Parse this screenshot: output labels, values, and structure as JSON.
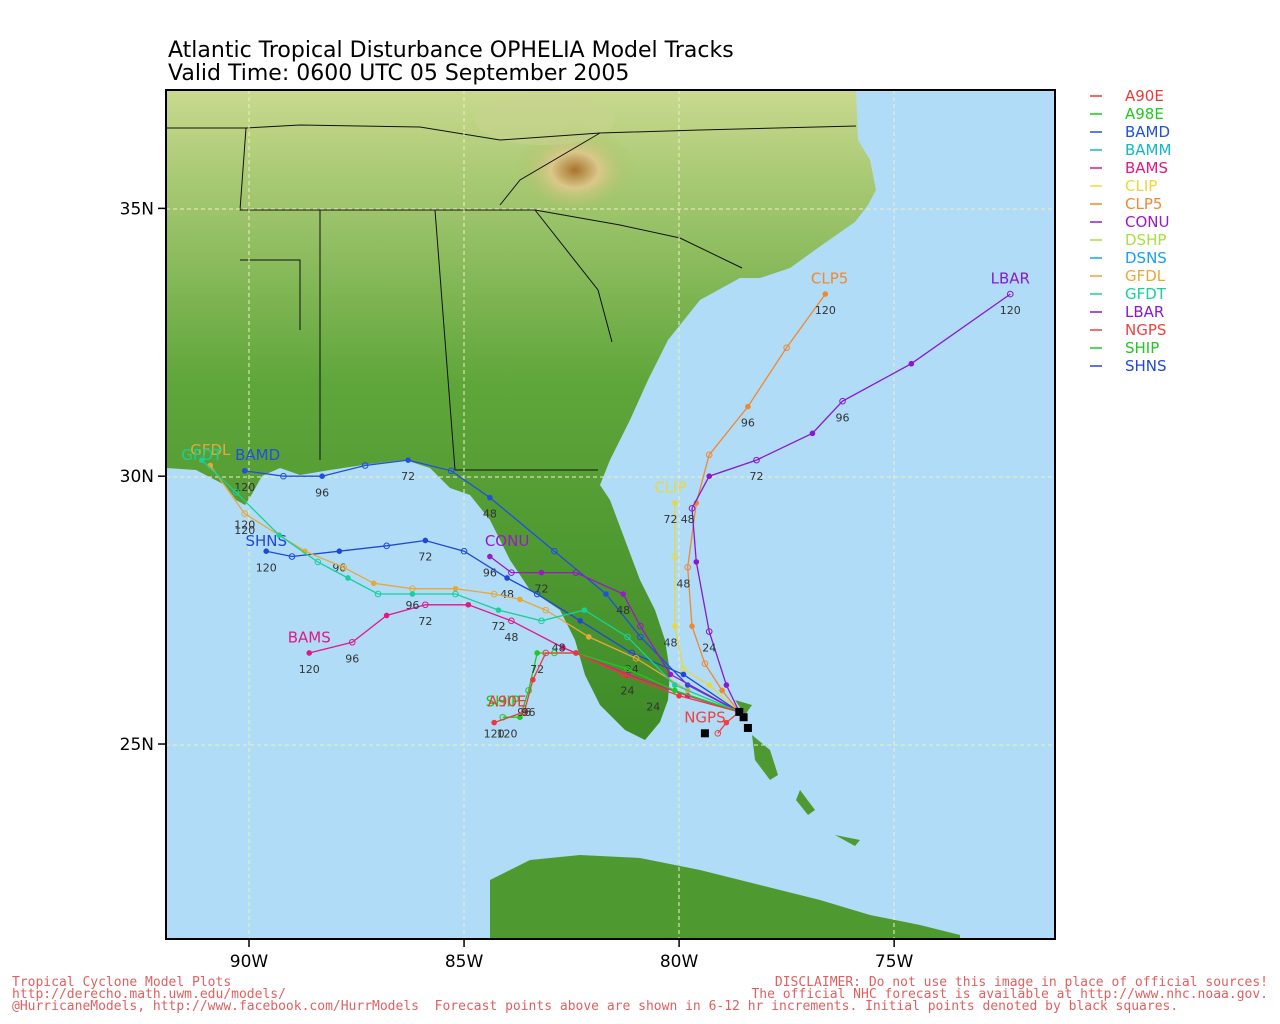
{
  "title": {
    "line1": "Atlantic Tropical Disturbance OPHELIA Model Tracks",
    "line2": "Valid Time: 0600 UTC 05 September 2005"
  },
  "axes": {
    "lat_labels": [
      {
        "text": "35N",
        "lat": 35
      },
      {
        "text": "30N",
        "lat": 30
      },
      {
        "text": "25N",
        "lat": 25
      }
    ],
    "lon_labels": [
      {
        "text": "90W",
        "lon": -90
      },
      {
        "text": "85W",
        "lon": -85
      },
      {
        "text": "80W",
        "lon": -80
      },
      {
        "text": "75W",
        "lon": -75
      }
    ]
  },
  "legend": [
    {
      "name": "A90E",
      "color": "#e83a3a"
    },
    {
      "name": "A98E",
      "color": "#1ec81e"
    },
    {
      "name": "BAMD",
      "color": "#2050e0"
    },
    {
      "name": "BAMM",
      "color": "#10b8c8"
    },
    {
      "name": "BAMS",
      "color": "#e01888"
    },
    {
      "name": "CLIP",
      "color": "#e8d840"
    },
    {
      "name": "CLP5",
      "color": "#f08830"
    },
    {
      "name": "CONU",
      "color": "#9a1ac8"
    },
    {
      "name": "DSHP",
      "color": "#a8e040"
    },
    {
      "name": "DSNS",
      "color": "#18a0e8"
    },
    {
      "name": "GFDL",
      "color": "#e8a838"
    },
    {
      "name": "GFDT",
      "color": "#18d098"
    },
    {
      "name": "LBAR",
      "color": "#8a18d0"
    },
    {
      "name": "NGPS",
      "color": "#f04040"
    },
    {
      "name": "SHIP",
      "color": "#20c820"
    },
    {
      "name": "SHNS",
      "color": "#2048d8"
    }
  ],
  "tracks": [
    {
      "name": "CLP5",
      "color": "#f08830",
      "label_pos": [
        -76.5,
        33.6
      ],
      "points": [
        [
          -78.6,
          25.6
        ],
        [
          -79.0,
          26.0
        ],
        [
          -79.4,
          26.5
        ],
        [
          -79.7,
          27.2
        ],
        [
          -79.8,
          28.3
        ],
        [
          -79.6,
          29.5
        ],
        [
          -79.3,
          30.4
        ],
        [
          -78.4,
          31.3
        ],
        [
          -77.5,
          32.4
        ],
        [
          -76.6,
          33.4
        ]
      ],
      "hour_labels": [
        {
          "text": "48",
          "pt": [
            -79.9,
            28.0
          ]
        },
        {
          "text": "96",
          "pt": [
            -78.4,
            31.0
          ]
        },
        {
          "text": "120",
          "pt": [
            -76.6,
            33.1
          ]
        }
      ]
    },
    {
      "name": "LBAR",
      "color": "#8a18d0",
      "label_pos": [
        -72.3,
        33.6
      ],
      "points": [
        [
          -78.6,
          25.6
        ],
        [
          -78.9,
          26.1
        ],
        [
          -79.3,
          27.1
        ],
        [
          -79.6,
          28.4
        ],
        [
          -79.7,
          29.4
        ],
        [
          -79.3,
          30.0
        ],
        [
          -78.2,
          30.3
        ],
        [
          -76.9,
          30.8
        ],
        [
          -76.2,
          31.4
        ],
        [
          -74.6,
          32.1
        ],
        [
          -72.3,
          33.4
        ]
      ],
      "hour_labels": [
        {
          "text": "24",
          "pt": [
            -79.3,
            26.8
          ]
        },
        {
          "text": "48",
          "pt": [
            -79.8,
            29.2
          ]
        },
        {
          "text": "72",
          "pt": [
            -78.2,
            30.0
          ]
        },
        {
          "text": "96",
          "pt": [
            -76.2,
            31.1
          ]
        },
        {
          "text": "120",
          "pt": [
            -72.3,
            33.1
          ]
        }
      ]
    },
    {
      "name": "CLIP",
      "color": "#e8d840",
      "label_pos": [
        -80.2,
        29.7
      ],
      "points": [
        [
          -78.6,
          25.6
        ],
        [
          -79.3,
          26.1
        ],
        [
          -79.9,
          26.4
        ],
        [
          -80.1,
          27.2
        ],
        [
          -80.1,
          28.5
        ],
        [
          -80.1,
          29.5
        ]
      ],
      "hour_labels": [
        {
          "text": "48",
          "pt": [
            -80.2,
            26.9
          ]
        },
        {
          "text": "72",
          "pt": [
            -80.2,
            29.2
          ]
        }
      ]
    },
    {
      "name": "BAMD",
      "color": "#2050e0",
      "label_pos": [
        -89.8,
        30.3
      ],
      "points": [
        [
          -78.6,
          25.6
        ],
        [
          -79.8,
          26.1
        ],
        [
          -80.9,
          27.0
        ],
        [
          -81.7,
          27.8
        ],
        [
          -82.9,
          28.6
        ],
        [
          -84.4,
          29.6
        ],
        [
          -85.3,
          30.1
        ],
        [
          -86.3,
          30.3
        ],
        [
          -87.3,
          30.2
        ],
        [
          -88.3,
          30.0
        ],
        [
          -89.2,
          30.0
        ],
        [
          -90.1,
          30.1
        ]
      ],
      "hour_labels": [
        {
          "text": "48",
          "pt": [
            -84.4,
            29.3
          ]
        },
        {
          "text": "72",
          "pt": [
            -86.3,
            30.0
          ]
        },
        {
          "text": "96",
          "pt": [
            -88.3,
            29.7
          ]
        },
        {
          "text": "120",
          "pt": [
            -90.1,
            29.8
          ]
        }
      ]
    },
    {
      "name": "SHNS",
      "color": "#2048d8",
      "label_pos": [
        -89.6,
        28.7
      ],
      "points": [
        [
          -78.6,
          25.6
        ],
        [
          -79.9,
          26.3
        ],
        [
          -81.1,
          26.7
        ],
        [
          -82.3,
          27.3
        ],
        [
          -83.3,
          27.8
        ],
        [
          -84.0,
          28.1
        ],
        [
          -85.0,
          28.6
        ],
        [
          -85.9,
          28.8
        ],
        [
          -86.8,
          28.7
        ],
        [
          -87.9,
          28.6
        ],
        [
          -89.0,
          28.5
        ],
        [
          -89.6,
          28.6
        ]
      ],
      "hour_labels": [
        {
          "text": "24",
          "pt": [
            -81.1,
            26.4
          ]
        },
        {
          "text": "48",
          "pt": [
            -84.0,
            27.8
          ]
        },
        {
          "text": "72",
          "pt": [
            -85.9,
            28.5
          ]
        },
        {
          "text": "96",
          "pt": [
            -87.9,
            28.3
          ]
        },
        {
          "text": "120",
          "pt": [
            -89.6,
            28.3
          ]
        }
      ]
    },
    {
      "name": "BAMS",
      "color": "#e01888",
      "label_pos": [
        -88.6,
        26.9
      ],
      "points": [
        [
          -78.6,
          25.6
        ],
        [
          -79.8,
          25.9
        ],
        [
          -81.2,
          26.3
        ],
        [
          -82.7,
          26.8
        ],
        [
          -83.9,
          27.3
        ],
        [
          -84.9,
          27.6
        ],
        [
          -85.9,
          27.6
        ],
        [
          -86.8,
          27.4
        ],
        [
          -87.6,
          26.9
        ],
        [
          -88.6,
          26.7
        ]
      ],
      "hour_labels": [
        {
          "text": "24",
          "pt": [
            -81.2,
            26.0
          ]
        },
        {
          "text": "48",
          "pt": [
            -83.9,
            27.0
          ]
        },
        {
          "text": "72",
          "pt": [
            -85.9,
            27.3
          ]
        },
        {
          "text": "96",
          "pt": [
            -87.6,
            26.6
          ]
        },
        {
          "text": "120",
          "pt": [
            -88.6,
            26.4
          ]
        }
      ]
    },
    {
      "name": "CONU",
      "color": "#9a1ac8",
      "label_pos": [
        -84.0,
        28.7
      ],
      "points": [
        [
          -78.6,
          25.6
        ],
        [
          -80.2,
          26.3
        ],
        [
          -80.9,
          27.2
        ],
        [
          -81.3,
          27.8
        ],
        [
          -82.4,
          28.2
        ],
        [
          -83.2,
          28.2
        ],
        [
          -83.9,
          28.2
        ],
        [
          -84.4,
          28.5
        ]
      ],
      "hour_labels": [
        {
          "text": "48",
          "pt": [
            -81.3,
            27.5
          ]
        },
        {
          "text": "72",
          "pt": [
            -83.2,
            27.9
          ]
        },
        {
          "text": "96",
          "pt": [
            -84.4,
            28.2
          ]
        }
      ]
    },
    {
      "name": "GFDL",
      "color": "#e8a838",
      "label_pos": [
        -90.9,
        30.4
      ],
      "points": [
        [
          -78.6,
          25.6
        ],
        [
          -79.8,
          26.0
        ],
        [
          -81.0,
          26.6
        ],
        [
          -82.1,
          27.0
        ],
        [
          -83.1,
          27.5
        ],
        [
          -83.7,
          27.7
        ],
        [
          -84.3,
          27.8
        ],
        [
          -85.2,
          27.9
        ],
        [
          -86.2,
          27.9
        ],
        [
          -87.1,
          28.0
        ],
        [
          -87.8,
          28.3
        ],
        [
          -88.7,
          28.6
        ],
        [
          -90.1,
          29.3
        ],
        [
          -90.9,
          30.2
        ]
      ],
      "hour_labels": [
        {
          "text": "96",
          "pt": [
            -86.2,
            27.6
          ]
        },
        {
          "text": "120",
          "pt": [
            -90.1,
            29.0
          ]
        }
      ]
    },
    {
      "name": "GFDT",
      "color": "#18d098",
      "label_pos": [
        -91.1,
        30.3
      ],
      "points": [
        [
          -78.6,
          25.6
        ],
        [
          -80.1,
          26.1
        ],
        [
          -81.2,
          27.0
        ],
        [
          -82.2,
          27.5
        ],
        [
          -83.2,
          27.3
        ],
        [
          -84.2,
          27.5
        ],
        [
          -85.2,
          27.8
        ],
        [
          -86.2,
          27.8
        ],
        [
          -87.0,
          27.8
        ],
        [
          -87.7,
          28.1
        ],
        [
          -88.4,
          28.4
        ],
        [
          -89.3,
          28.9
        ],
        [
          -90.3,
          29.7
        ],
        [
          -91.1,
          30.3
        ]
      ],
      "hour_labels": [
        {
          "text": "72",
          "pt": [
            -84.2,
            27.2
          ]
        },
        {
          "text": "120",
          "pt": [
            -90.1,
            29.1
          ]
        }
      ]
    },
    {
      "name": "SHIP",
      "color": "#20c820",
      "label_pos": [
        -84.1,
        25.7
      ],
      "points": [
        [
          -78.6,
          25.6
        ],
        [
          -80.1,
          26.0
        ],
        [
          -81.2,
          26.4
        ],
        [
          -82.4,
          26.7
        ],
        [
          -82.9,
          26.7
        ],
        [
          -83.3,
          26.7
        ],
        [
          -83.5,
          26.0
        ],
        [
          -83.7,
          25.5
        ],
        [
          -84.1,
          25.5
        ]
      ],
      "hour_labels": [
        {
          "text": "24",
          "pt": [
            -80.6,
            25.7
          ]
        },
        {
          "text": "48",
          "pt": [
            -82.8,
            26.8
          ]
        },
        {
          "text": "72",
          "pt": [
            -83.3,
            26.4
          ]
        },
        {
          "text": "96",
          "pt": [
            -83.6,
            25.6
          ]
        },
        {
          "text": "120",
          "pt": [
            -84.0,
            25.2
          ]
        }
      ]
    },
    {
      "name": "A90E",
      "color": "#e83a3a",
      "label_pos": [
        -84.0,
        25.7
      ],
      "points": [
        [
          -78.6,
          25.6
        ],
        [
          -80.0,
          25.9
        ],
        [
          -81.3,
          26.3
        ],
        [
          -82.4,
          26.7
        ],
        [
          -83.1,
          26.7
        ],
        [
          -83.4,
          26.2
        ],
        [
          -83.6,
          25.6
        ],
        [
          -84.3,
          25.4
        ]
      ],
      "hour_labels": [
        {
          "text": "96",
          "pt": [
            -83.5,
            25.6
          ]
        },
        {
          "text": "120",
          "pt": [
            -84.3,
            25.2
          ]
        }
      ]
    },
    {
      "name": "NGPS",
      "color": "#f04040",
      "label_pos": [
        -79.4,
        25.4
      ],
      "points": [
        [
          -78.6,
          25.6
        ],
        [
          -78.9,
          25.4
        ],
        [
          -79.1,
          25.2
        ]
      ],
      "hour_labels": []
    }
  ],
  "initial_points": [
    [
      -78.6,
      25.6
    ],
    [
      -78.5,
      25.5
    ],
    [
      -78.4,
      25.3
    ],
    [
      -79.4,
      25.2
    ]
  ],
  "footer": {
    "left1": "Tropical Cyclone Model Plots",
    "left2": "http://derecho.math.uwm.edu/models/",
    "left3": "@HurricaneModels, http://www.facebook.com/HurrModels  Forecast points above are shown in 6-12 hr increments. Initial points denoted by black squares.",
    "right1": "DISCLAIMER: Do not use this image in place of official sources!",
    "right2": "The official NHC forecast is available at http://www.nhc.noaa.gov."
  }
}
